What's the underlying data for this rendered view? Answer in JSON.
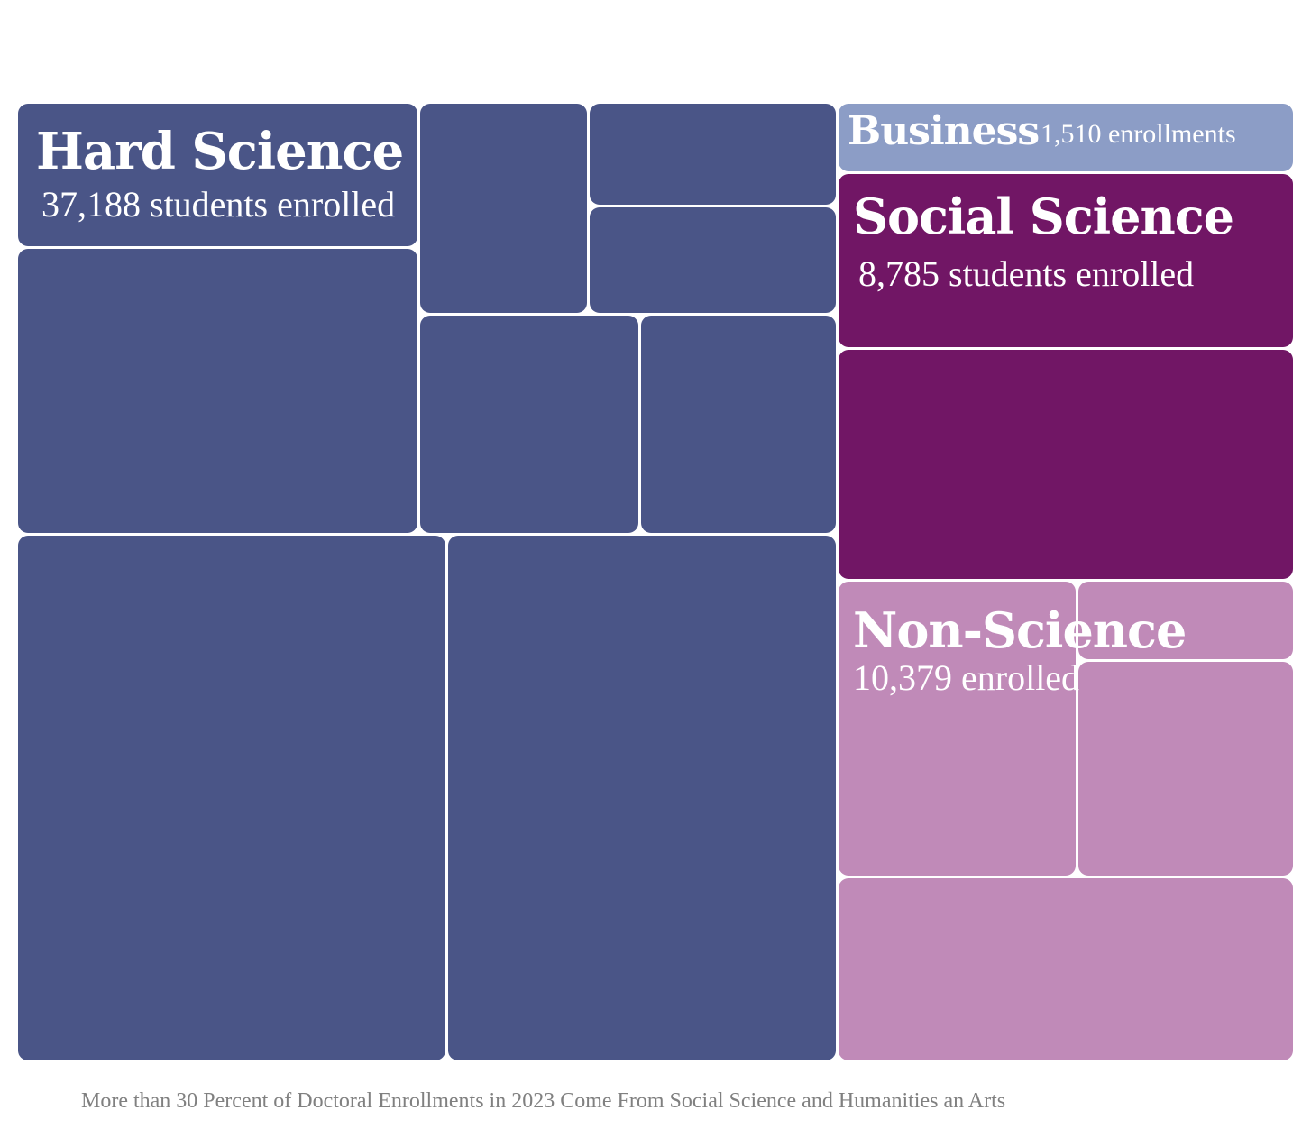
{
  "chart_data": {
    "type": "treemap",
    "groups": [
      {
        "name": "Hard Science",
        "value_label": "37,188 students enrolled",
        "value": 37188,
        "color": "#4a5587"
      },
      {
        "name": "Social Science",
        "value_label": "8,785 students enrolled",
        "value": 8785,
        "color": "#711665"
      },
      {
        "name": "Business",
        "value_label": "1,510 enrollments",
        "value": 1510,
        "color": "#8c9dc6"
      },
      {
        "name": "Non-Science",
        "value_label": "10,379 enrolled",
        "value": 10379,
        "color": "#c08ab8"
      }
    ],
    "caption": "More than 30 Percent of Doctoral Enrollments in 2023 Come From Social Science and Humanities an Arts"
  }
}
